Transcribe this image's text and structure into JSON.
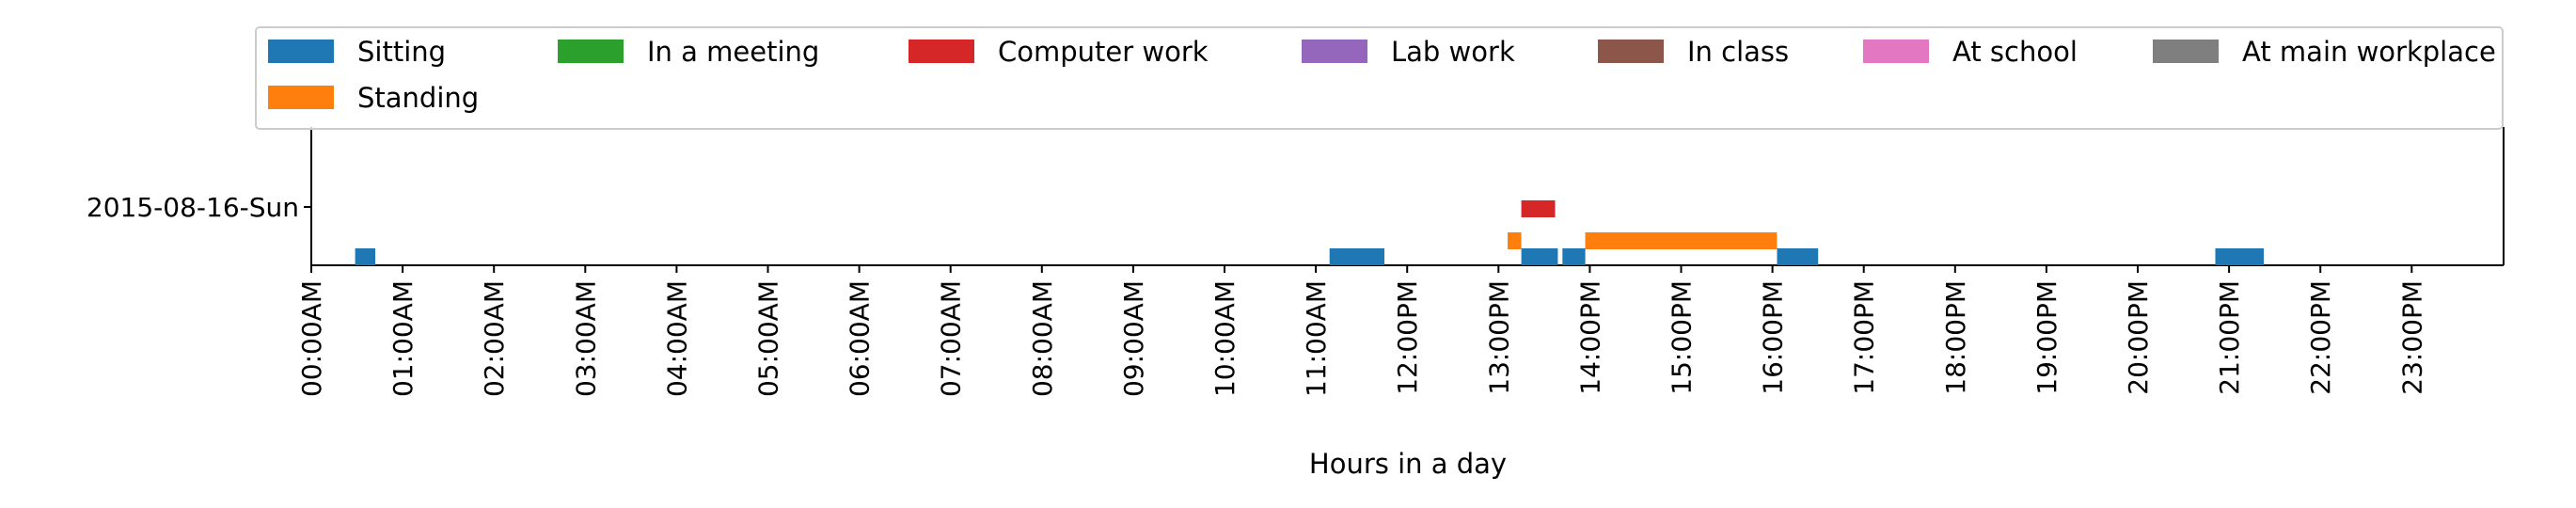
{
  "chart_data": {
    "type": "timeline",
    "xlabel": "Hours in a day",
    "xlim": [
      0,
      24
    ],
    "row_label": "2015-08-16-Sun",
    "x_ticks": [
      "00:00AM",
      "01:00AM",
      "02:00AM",
      "03:00AM",
      "04:00AM",
      "05:00AM",
      "06:00AM",
      "07:00AM",
      "08:00AM",
      "09:00AM",
      "10:00AM",
      "11:00AM",
      "12:00PM",
      "13:00PM",
      "14:00PM",
      "15:00PM",
      "16:00PM",
      "17:00PM",
      "18:00PM",
      "19:00PM",
      "20:00PM",
      "21:00PM",
      "22:00PM",
      "23:00PM"
    ],
    "legend_position": "top",
    "series": [
      {
        "name": "Sitting",
        "color": "#1f77b4",
        "level": 0,
        "intervals": [
          [
            0.48,
            0.7
          ],
          [
            11.15,
            11.75
          ],
          [
            13.25,
            13.65
          ],
          [
            13.7,
            13.95
          ],
          [
            16.05,
            16.5
          ],
          [
            20.85,
            21.38
          ]
        ]
      },
      {
        "name": "Standing",
        "color": "#ff7f0e",
        "level": 1,
        "intervals": [
          [
            13.1,
            13.25
          ],
          [
            13.95,
            16.05
          ]
        ]
      },
      {
        "name": "In a meeting",
        "color": "#2ca02c",
        "level": 2,
        "intervals": []
      },
      {
        "name": "Computer work",
        "color": "#d62728",
        "level": 3,
        "intervals": [
          [
            13.25,
            13.62
          ]
        ]
      },
      {
        "name": "Lab work",
        "color": "#9467bd",
        "level": 4,
        "intervals": []
      },
      {
        "name": "In class",
        "color": "#8c564b",
        "level": 5,
        "intervals": []
      },
      {
        "name": "At school",
        "color": "#e377c2",
        "level": 6,
        "intervals": []
      },
      {
        "name": "At main workplace",
        "color": "#7f7f7f",
        "level": 7,
        "intervals": []
      }
    ]
  }
}
